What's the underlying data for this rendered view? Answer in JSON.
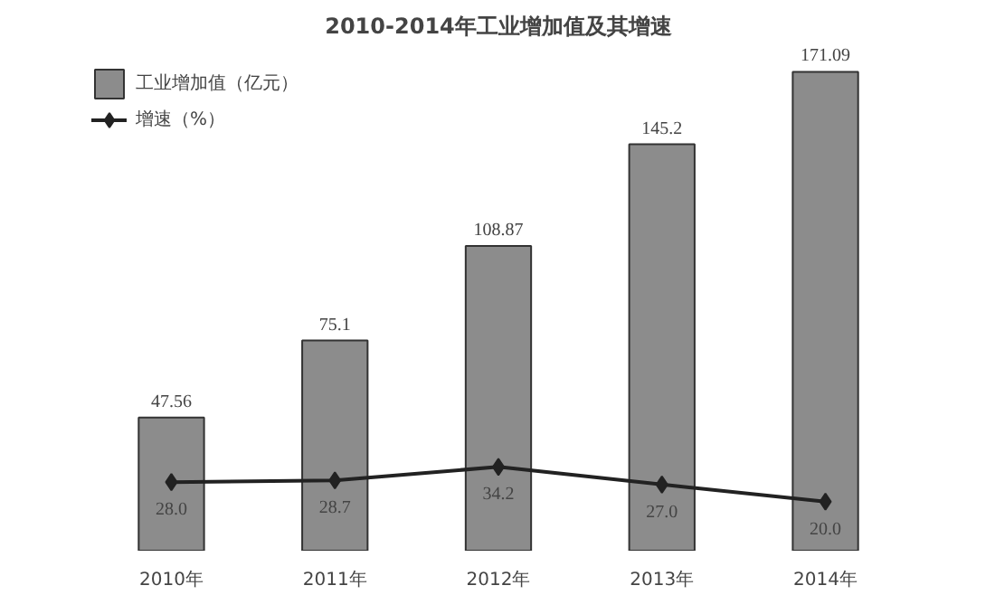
{
  "chart_data": {
    "type": "bar",
    "title": "2010-2014年工业增加值及其增速",
    "categories": [
      "2010年",
      "2011年",
      "2012年",
      "2013年",
      "2014年"
    ],
    "series": [
      {
        "name": "工业增加值（亿元）",
        "color": "#8c8c8c",
        "values": [
          47.56,
          75.1,
          108.87,
          145.2,
          171.09
        ],
        "value_labels": [
          "47.56",
          "75.1",
          "108.87",
          "145.2",
          "171.09"
        ]
      },
      {
        "name": "增速（%）",
        "type": "line",
        "axis": "y2",
        "color": "#222222",
        "values": [
          28.0,
          28.7,
          34.2,
          27.0,
          20.0
        ],
        "value_labels": [
          "28.0",
          "28.7",
          "34.2",
          "27.0",
          "20.0"
        ]
      }
    ],
    "legend": "top left",
    "marker": "diamond",
    "line_style": "solid",
    "grid": false,
    "tick_labels": "x"
  }
}
